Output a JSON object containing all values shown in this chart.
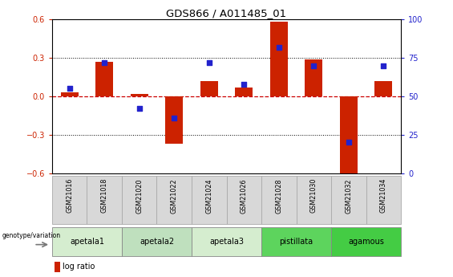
{
  "title": "GDS866 / A011485_01",
  "samples": [
    "GSM21016",
    "GSM21018",
    "GSM21020",
    "GSM21022",
    "GSM21024",
    "GSM21026",
    "GSM21028",
    "GSM21030",
    "GSM21032",
    "GSM21034"
  ],
  "log_ratio": [
    0.03,
    0.27,
    0.02,
    -0.37,
    0.12,
    0.07,
    0.585,
    0.29,
    -0.6,
    0.12
  ],
  "percentile_rank": [
    55,
    72,
    42,
    36,
    72,
    58,
    82,
    70,
    20,
    70
  ],
  "group_defs": [
    {
      "label": "apetala1",
      "start": 0,
      "end": 2,
      "color": "#d5edcf"
    },
    {
      "label": "apetala2",
      "start": 2,
      "end": 4,
      "color": "#bfe0be"
    },
    {
      "label": "apetala3",
      "start": 4,
      "end": 6,
      "color": "#d5edcf"
    },
    {
      "label": "pistillata",
      "start": 6,
      "end": 8,
      "color": "#5dd45d"
    },
    {
      "label": "agamous",
      "start": 8,
      "end": 10,
      "color": "#44cc44"
    }
  ],
  "ylim_left": [
    -0.6,
    0.6
  ],
  "ylim_right": [
    0,
    100
  ],
  "yticks_left": [
    -0.6,
    -0.3,
    0.0,
    0.3,
    0.6
  ],
  "yticks_right": [
    0,
    25,
    50,
    75,
    100
  ],
  "bar_color": "#cc2200",
  "dot_color": "#2222cc",
  "zero_line_color": "#cc0000",
  "grid_line_color": "#000000",
  "bar_width": 0.5,
  "sample_box_color": "#d8d8d8",
  "sample_box_edge": "#aaaaaa"
}
